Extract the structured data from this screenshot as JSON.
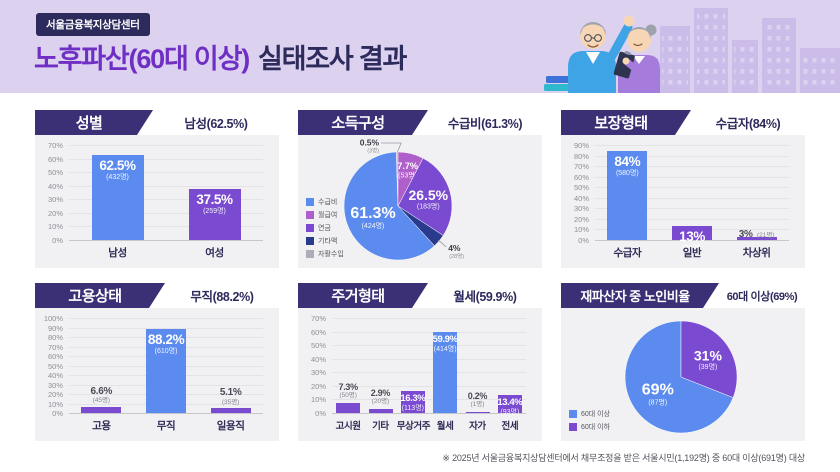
{
  "header": {
    "badge": "서울금융복지상담센터",
    "title_main": "노후파산(60대 이상)",
    "title_tail": "실태조사 결과"
  },
  "footnote": "※ 2025년 서울금융복지상담센터에서 채무조정을 받은 서울시민(1,192명) 중 60대 이상(691명) 대상",
  "palette": {
    "blue": "#5B8BEE",
    "purple": "#7A4AD0",
    "magenta": "#AF5FC9",
    "navy": "#2A3A8C",
    "gray": "#AEAEB8",
    "panel_header": "#3B2F76",
    "deep_navy": "#2D2A5C",
    "accent_purple": "#6F2EC4"
  },
  "chart_data": [
    {
      "id": "gender",
      "type": "bar",
      "title": "성별",
      "headline": "남성(62.5%)",
      "ylim": [
        0,
        70
      ],
      "ytick": 10,
      "grid": true,
      "ylabel": "%",
      "categories": [
        "남성",
        "여성"
      ],
      "values": [
        62.5,
        37.5
      ],
      "value_labels": [
        "62.5%",
        "37.5%"
      ],
      "counts": [
        "(432명)",
        "(259명)"
      ],
      "bar_colors": [
        "blue",
        "purple"
      ]
    },
    {
      "id": "income",
      "type": "pie",
      "title": "소득구성",
      "headline": "수급비(61.3%)",
      "legend_position": "left",
      "start_deg": 137.5,
      "slices": [
        {
          "label": "수급비",
          "value": 61.3,
          "value_label": "61.3%",
          "count": "(424명)",
          "color": "blue"
        },
        {
          "label": "자활수입",
          "value": 0.5,
          "value_label": "0.5%",
          "count": "(3명)",
          "color": "gray"
        },
        {
          "label": "월급여",
          "value": 7.7,
          "value_label": "7.7%",
          "count": "(53명)",
          "color": "magenta"
        },
        {
          "label": "연금",
          "value": 26.5,
          "value_label": "26.5%",
          "count": "(183명)",
          "color": "purple"
        },
        {
          "label": "기타액",
          "value": 4,
          "value_label": "4%",
          "count": "(28명)",
          "color": "navy"
        }
      ],
      "legend_order": [
        0,
        2,
        3,
        4,
        1
      ]
    },
    {
      "id": "coverage",
      "type": "bar",
      "title": "보장형태",
      "headline": "수급자(84%)",
      "ylim": [
        0,
        90
      ],
      "ytick": 10,
      "grid": true,
      "above_inline": true,
      "categories": [
        "수급자",
        "일반",
        "차상위"
      ],
      "values": [
        84,
        13,
        3
      ],
      "value_labels": [
        "84%",
        "13%",
        "3%"
      ],
      "counts": [
        "(580명)",
        "(90명)",
        "(21명)"
      ],
      "bar_colors": [
        "blue",
        "purple",
        "purple"
      ]
    },
    {
      "id": "employment",
      "type": "bar",
      "title": "고용상태",
      "headline": "무직(88.2%)",
      "ylim": [
        0,
        100
      ],
      "ytick": 10,
      "grid": true,
      "categories": [
        "고용",
        "무직",
        "일용직"
      ],
      "values": [
        6.6,
        88.2,
        5.1
      ],
      "value_labels": [
        "6.6%",
        "88.2%",
        "5.1%"
      ],
      "counts": [
        "(45명)",
        "(610명)",
        "(35명)"
      ],
      "bar_colors": [
        "purple",
        "blue",
        "purple"
      ]
    },
    {
      "id": "housing",
      "type": "bar",
      "title": "주거형태",
      "headline": "월세(59.9%)",
      "ylim": [
        0,
        70
      ],
      "ytick": 10,
      "grid": true,
      "categories": [
        "고시원",
        "기타",
        "무상거주",
        "월세",
        "자가",
        "전세"
      ],
      "values": [
        7.3,
        2.9,
        16.3,
        59.9,
        0.2,
        13.4
      ],
      "value_labels": [
        "7.3%",
        "2.9%",
        "16.3%",
        "59.9%",
        "0.2%",
        "13.4%"
      ],
      "counts": [
        "(50명)",
        "(20명)",
        "(113명)",
        "(414명)",
        "(1명)",
        "(93명)"
      ],
      "bar_colors": [
        "purple",
        "purple",
        "purple",
        "blue",
        "purple",
        "purple"
      ]
    },
    {
      "id": "rebankrupt",
      "type": "pie",
      "title": "재파산자 중 노인비율",
      "headline": "60대 이상(69%)",
      "legend_position": "left",
      "start_deg": 111.6,
      "slices": [
        {
          "label": "60대 이상",
          "value": 69,
          "value_label": "69%",
          "count": "(87명)",
          "color": "blue"
        },
        {
          "label": "60대 이하",
          "value": 31,
          "value_label": "31%",
          "count": "(39명)",
          "color": "purple"
        }
      ],
      "legend_order": [
        0,
        1
      ]
    }
  ]
}
